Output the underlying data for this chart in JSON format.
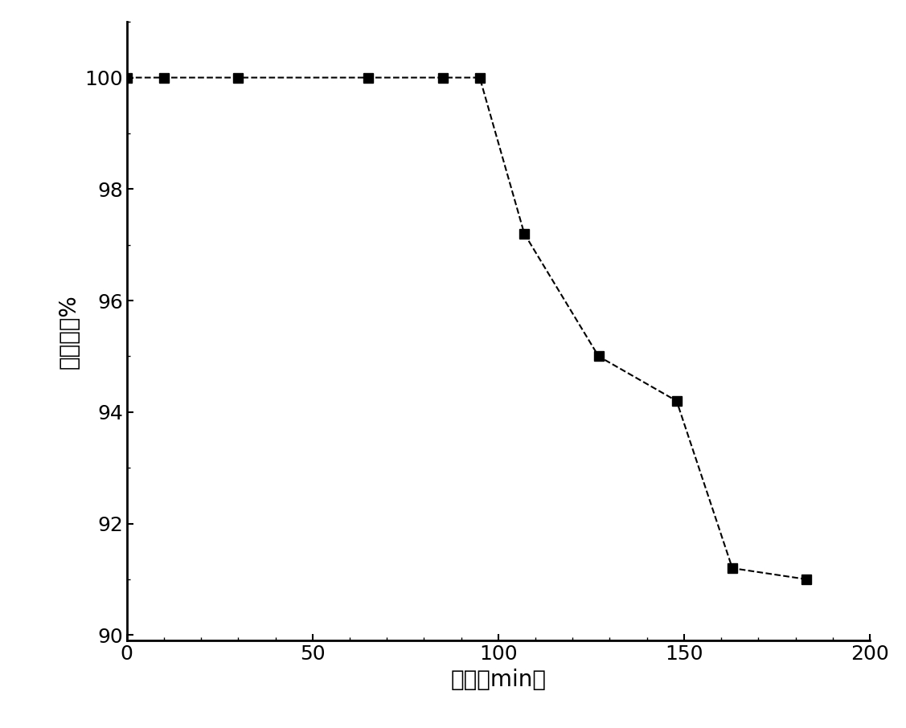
{
  "x": [
    0,
    10,
    30,
    65,
    85,
    95,
    107,
    127,
    148,
    163,
    183
  ],
  "y": [
    100,
    100,
    100,
    100,
    100,
    100,
    97.2,
    95.0,
    94.2,
    91.2,
    91.0
  ],
  "xlabel": "时间（min）",
  "ylabel": "净化效率%",
  "xlim": [
    0,
    200
  ],
  "ylim": [
    89.9,
    101.0
  ],
  "xticks": [
    0,
    50,
    100,
    150,
    200
  ],
  "yticks": [
    90,
    92,
    94,
    96,
    98,
    100
  ],
  "line_color": "#000000",
  "marker_color": "#000000",
  "marker": "s",
  "marker_size": 9,
  "line_style": "--",
  "line_width": 1.5,
  "background_color": "#ffffff",
  "xlabel_fontsize": 20,
  "ylabel_fontsize": 20,
  "tick_fontsize": 18,
  "spine_linewidth": 2.0
}
